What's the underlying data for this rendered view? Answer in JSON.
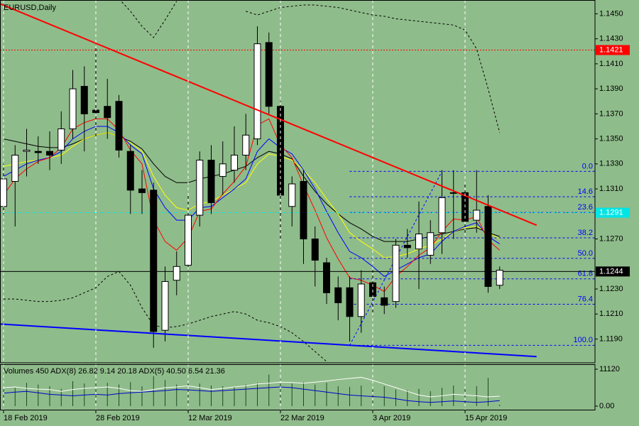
{
  "chart_data": [
    {
      "type": "candlestick",
      "title": "EURUSD,Daily",
      "categories": [
        "18 Feb 2019",
        null,
        null,
        null,
        null,
        null,
        null,
        null,
        "28 Feb 2019",
        null,
        null,
        null,
        null,
        null,
        null,
        null,
        "12 Mar 2019",
        null,
        null,
        null,
        null,
        null,
        null,
        null,
        "22 Mar 2019",
        null,
        null,
        null,
        null,
        null,
        null,
        null,
        "3 Apr 2019",
        null,
        null,
        null,
        null,
        null,
        null,
        null,
        "15 Apr 2019",
        null,
        null,
        null
      ],
      "open": [
        1.1296,
        1.1316,
        1.134,
        1.134,
        1.134,
        1.1341,
        1.1358,
        1.1392,
        1.1373,
        1.1376,
        1.138,
        1.134,
        1.131,
        1.1309,
        1.1197,
        1.1237,
        1.1249,
        1.1289,
        1.1333,
        1.132,
        1.1325,
        1.1337,
        1.135,
        1.1427,
        1.1376,
        1.1296,
        1.1316,
        1.127,
        1.1251,
        1.1231,
        1.1231,
        1.1208,
        1.1235,
        1.1223,
        1.122,
        1.1265,
        1.1262,
        1.1257,
        1.1275,
        1.1307,
        1.1307,
        1.1285,
        1.1296,
        1.1233
      ],
      "high": [
        1.133,
        1.1345,
        1.1358,
        1.1352,
        1.1356,
        1.1372,
        1.1405,
        1.1408,
        1.1425,
        1.1398,
        1.1385,
        1.1345,
        1.1325,
        1.1315,
        1.1248,
        1.126,
        1.1305,
        1.134,
        1.1345,
        1.1348,
        1.136,
        1.137,
        1.144,
        1.1435,
        1.138,
        1.132,
        1.1325,
        1.128,
        1.1255,
        1.124,
        1.124,
        1.1245,
        1.1245,
        1.1232,
        1.127,
        1.1278,
        1.13,
        1.1285,
        1.1325,
        1.1325,
        1.1315,
        1.1325,
        1.1305,
        1.1248
      ],
      "low": [
        1.129,
        1.128,
        1.132,
        1.133,
        1.1325,
        1.133,
        1.135,
        1.134,
        1.135,
        1.135,
        1.1335,
        1.129,
        1.129,
        1.1183,
        1.1188,
        1.1225,
        1.1245,
        1.128,
        1.129,
        1.1305,
        1.1315,
        1.1325,
        1.1345,
        1.137,
        1.127,
        1.128,
        1.125,
        1.1232,
        1.1218,
        1.1205,
        1.1188,
        1.1195,
        1.121,
        1.121,
        1.1215,
        1.1255,
        1.123,
        1.125,
        1.1258,
        1.127,
        1.1275,
        1.1275,
        1.1227,
        1.123
      ],
      "close": [
        1.1318,
        1.1337,
        1.1341,
        1.1339,
        1.1337,
        1.1358,
        1.139,
        1.137,
        1.1371,
        1.1367,
        1.1341,
        1.1309,
        1.1307,
        1.1196,
        1.1236,
        1.1248,
        1.1289,
        1.1333,
        1.1299,
        1.133,
        1.1337,
        1.1353,
        1.1426,
        1.1376,
        1.1305,
        1.1314,
        1.127,
        1.1253,
        1.1227,
        1.1219,
        1.1208,
        1.1234,
        1.1224,
        1.1217,
        1.1265,
        1.1263,
        1.1274,
        1.1275,
        1.1303,
        1.1307,
        1.1284,
        1.1293,
        1.1232,
        1.1245
      ],
      "overlays": [
        {
          "color": "#000000",
          "style": "solid",
          "values": [
            1.135,
            1.1348,
            1.1346,
            1.1344,
            1.1343,
            1.1343,
            1.1346,
            1.135,
            1.1353,
            1.1355,
            1.1352,
            1.1348,
            1.1342,
            1.133,
            1.132,
            1.1315,
            1.1315,
            1.1318,
            1.132,
            1.1322,
            1.1325,
            1.1328,
            1.1335,
            1.134,
            1.1338,
            1.1334,
            1.132,
            1.1308,
            1.1298,
            1.129,
            1.1283,
            1.1278,
            1.1272,
            1.1268,
            1.1268,
            1.1268,
            1.127,
            1.1272,
            1.1274,
            1.1276,
            1.1278,
            1.1279,
            1.1275,
            1.1272
          ]
        },
        {
          "color": "#ffff00",
          "style": "solid",
          "values": [
            1.1328,
            1.133,
            1.1332,
            1.1333,
            1.1335,
            1.1337,
            1.1344,
            1.135,
            1.1353,
            1.1355,
            1.1352,
            1.1347,
            1.134,
            1.132,
            1.1305,
            1.1295,
            1.1293,
            1.1298,
            1.13,
            1.1305,
            1.131,
            1.1315,
            1.133,
            1.1338,
            1.1336,
            1.1333,
            1.1325,
            1.1315,
            1.1302,
            1.129,
            1.1275,
            1.1268,
            1.1262,
            1.1255,
            1.1256,
            1.1258,
            1.1262,
            1.1265,
            1.127,
            1.1276,
            1.1279,
            1.128,
            1.1275,
            1.127
          ]
        },
        {
          "color": "#0000ff",
          "style": "solid",
          "values": [
            1.132,
            1.1325,
            1.133,
            1.1333,
            1.1335,
            1.134,
            1.135,
            1.1356,
            1.136,
            1.136,
            1.1355,
            1.1345,
            1.1338,
            1.131,
            1.1295,
            1.1285,
            1.1285,
            1.1295,
            1.1296,
            1.1303,
            1.131,
            1.1318,
            1.134,
            1.135,
            1.1343,
            1.1338,
            1.1325,
            1.131,
            1.1292,
            1.1275,
            1.126,
            1.1255,
            1.1248,
            1.124,
            1.1245,
            1.125,
            1.1255,
            1.1258,
            1.1268,
            1.1276,
            1.128,
            1.1283,
            1.1272,
            1.1266
          ]
        },
        {
          "color": "#ff0000",
          "style": "solid",
          "values": [
            1.1305,
            1.1318,
            1.1326,
            1.1332,
            1.1335,
            1.1343,
            1.1358,
            1.1363,
            1.1366,
            1.1366,
            1.1357,
            1.1341,
            1.133,
            1.1285,
            1.1268,
            1.1261,
            1.1271,
            1.1292,
            1.1294,
            1.1306,
            1.1316,
            1.1328,
            1.1361,
            1.1366,
            1.1345,
            1.1335,
            1.1313,
            1.1293,
            1.1271,
            1.1254,
            1.1239,
            1.1237,
            1.1233,
            1.1228,
            1.124,
            1.1248,
            1.1257,
            1.1263,
            1.1276,
            1.1286,
            1.1285,
            1.1288,
            1.1269,
            1.1261
          ]
        },
        {
          "color": "#000000",
          "style": "dotted",
          "values": [
            null,
            null,
            null,
            null,
            null,
            null,
            null,
            null,
            null,
            null,
            1.1462,
            1.1452,
            1.144,
            1.1431,
            1.1445,
            1.146,
            null,
            null,
            null,
            null,
            null,
            1.1452,
            1.1449,
            1.1452,
            1.1455,
            1.1456,
            1.1457,
            1.1457,
            1.1456,
            1.1455,
            1.1453,
            1.1451,
            1.1449,
            1.1448,
            1.1446,
            1.1445,
            1.1444,
            1.1443,
            1.1442,
            1.1441,
            1.1437,
            1.1422,
            1.139,
            1.1355
          ]
        },
        {
          "color": "#000000",
          "style": "dotted",
          "values": [
            1.1222,
            1.1222,
            1.1221,
            1.122,
            1.122,
            1.1221,
            1.1223,
            1.1227,
            1.1231,
            1.124,
            1.1244,
            1.1233,
            1.1215,
            1.1201,
            1.1199,
            1.12,
            1.1202,
            1.1205,
            1.1208,
            1.121,
            1.1212,
            1.121,
            1.1205,
            1.1203,
            1.12,
            1.1195,
            1.1188,
            1.118,
            1.1172,
            null,
            null,
            null,
            null,
            null,
            null,
            null,
            null,
            null,
            null,
            null,
            null,
            null,
            null,
            null
          ]
        }
      ],
      "trendlines": [
        {
          "color": "#ff0000",
          "x": [
            -0.3,
            46.2
          ],
          "y": [
            1.1458,
            1.1281
          ]
        },
        {
          "color": "#0000ff",
          "x": [
            -0.3,
            46.2
          ],
          "y": [
            1.1202,
            1.1176
          ]
        }
      ],
      "fib": {
        "color": "#0000ff",
        "anchors": [
          30,
          38
        ],
        "low": 1.1185,
        "high": 1.1324,
        "levels": [
          {
            "value": 0,
            "label": "0.0"
          },
          14.6,
          23.6,
          38.2,
          {
            "value": 50,
            "label": "50.0"
          },
          61.8,
          76.4,
          {
            "value": 100,
            "label": "100.0"
          }
        ]
      },
      "price_tags": [
        {
          "value": 1.1421,
          "color": "#ff0000",
          "line": "dotted"
        },
        {
          "value": 1.1291,
          "color": "#00e5e5",
          "line": "dotted"
        },
        {
          "value": 1.1244,
          "color": "#000000",
          "line": "solid"
        }
      ],
      "ylim": [
        1.1171,
        1.1461
      ],
      "yticks": [
        {
          "value": 1.145,
          "label": "1.1450"
        },
        {
          "value": 1.143,
          "label": "1.1430"
        },
        {
          "value": 1.141,
          "label": "1.1410"
        },
        {
          "value": 1.139,
          "label": "1.1390"
        },
        {
          "value": 1.137,
          "label": "1.1370"
        },
        {
          "value": 1.135,
          "label": "1.1350"
        },
        {
          "value": 1.133,
          "label": "1.1330"
        },
        {
          "value": 1.131,
          "label": "1.1310"
        },
        {
          "value": 1.127,
          "label": "1.1270"
        },
        {
          "value": 1.123,
          "label": "1.1230"
        },
        {
          "value": 1.121,
          "label": "1.1210"
        },
        {
          "value": 1.119,
          "label": "1.1190"
        }
      ]
    },
    {
      "type": "volume",
      "title": "Volumes 450 ADX(8) 26.82 9.14 20.18 ADX(5) 40.50 6.54 21.36",
      "color": "#1e4a1e",
      "values": [
        6000,
        5500,
        7000,
        6500,
        6000,
        5200,
        7500,
        6800,
        8000,
        7000,
        6500,
        7200,
        6000,
        9000,
        7800,
        6500,
        7000,
        6800,
        6200,
        6000,
        5800,
        6500,
        7000,
        9500,
        8000,
        6800,
        7200,
        6500,
        7000,
        6000,
        5800,
        6200,
        5500,
        6000,
        5000,
        4800,
        5200,
        4500,
        5500,
        6200,
        5800,
        6000,
        8500,
        450
      ],
      "ylim": [
        0,
        11120
      ],
      "yticks": [
        11120,
        {
          "value": 0,
          "label": "0.00"
        }
      ],
      "y2lim": [
        0,
        100
      ],
      "series": [
        {
          "color": "#ffffff",
          "axis": "y2",
          "values": [
            50,
            52,
            48,
            46,
            45,
            40,
            45,
            48,
            50,
            52,
            48,
            42,
            40,
            45,
            50,
            52,
            55,
            50,
            45,
            48,
            52,
            55,
            60,
            62,
            65,
            64,
            62,
            65,
            68,
            72,
            75,
            78,
            70,
            60,
            50,
            40,
            30,
            25,
            28,
            32,
            30,
            28,
            25,
            26.82
          ]
        },
        {
          "color": "#0000cc",
          "axis": "y2",
          "values": [
            35,
            38,
            40,
            36,
            32,
            30,
            28,
            30,
            32,
            30,
            34,
            36,
            38,
            40,
            42,
            45,
            44,
            42,
            40,
            42,
            44,
            46,
            48,
            50,
            52,
            50,
            46,
            42,
            38,
            34,
            30,
            28,
            26,
            24,
            20,
            15,
            12,
            10,
            12,
            14,
            12,
            10,
            12,
            15
          ]
        }
      ]
    }
  ]
}
